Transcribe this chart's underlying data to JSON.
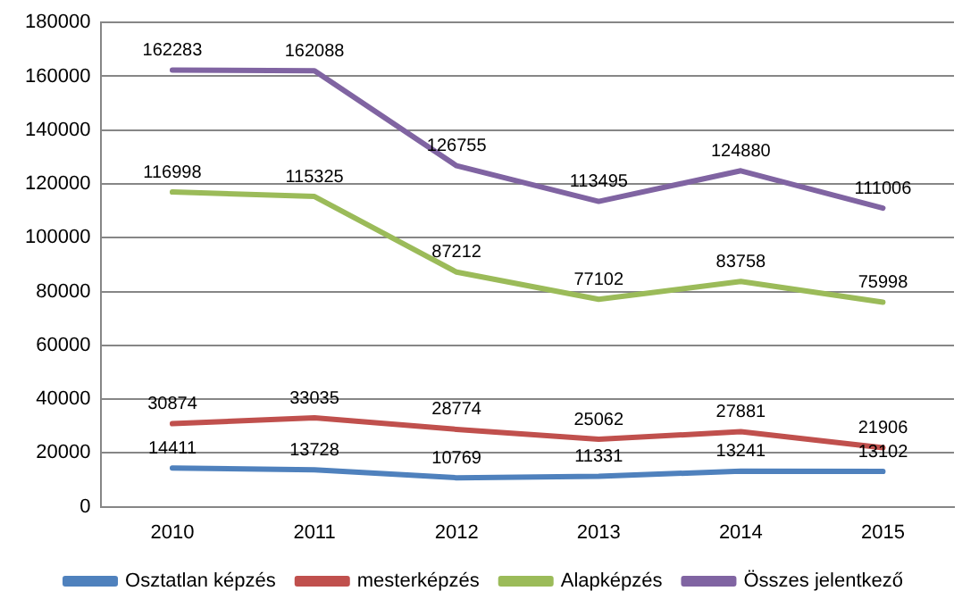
{
  "chart_data": {
    "type": "line",
    "categories": [
      "2010",
      "2011",
      "2012",
      "2013",
      "2014",
      "2015"
    ],
    "series": [
      {
        "name": "Osztatlan képzés",
        "color": "#4f81bd",
        "values": [
          14411,
          13728,
          10769,
          11331,
          13241,
          13102
        ]
      },
      {
        "name": "mesterképzés",
        "color": "#c0504d",
        "values": [
          30874,
          33035,
          28774,
          25062,
          27881,
          21906
        ]
      },
      {
        "name": "Alapképzés",
        "color": "#9bbb59",
        "values": [
          116998,
          115325,
          87212,
          77102,
          83758,
          75998
        ]
      },
      {
        "name": "Összes jelentkező",
        "color": "#8064a2",
        "values": [
          162283,
          162088,
          126755,
          113495,
          124880,
          111006
        ]
      }
    ],
    "ylim": [
      0,
      180000
    ],
    "yticks": [
      0,
      20000,
      40000,
      60000,
      80000,
      100000,
      120000,
      140000,
      160000,
      180000
    ],
    "grid": "y",
    "legend": "bottom",
    "marker": "none",
    "line_style": "solid",
    "data_labels": true
  }
}
